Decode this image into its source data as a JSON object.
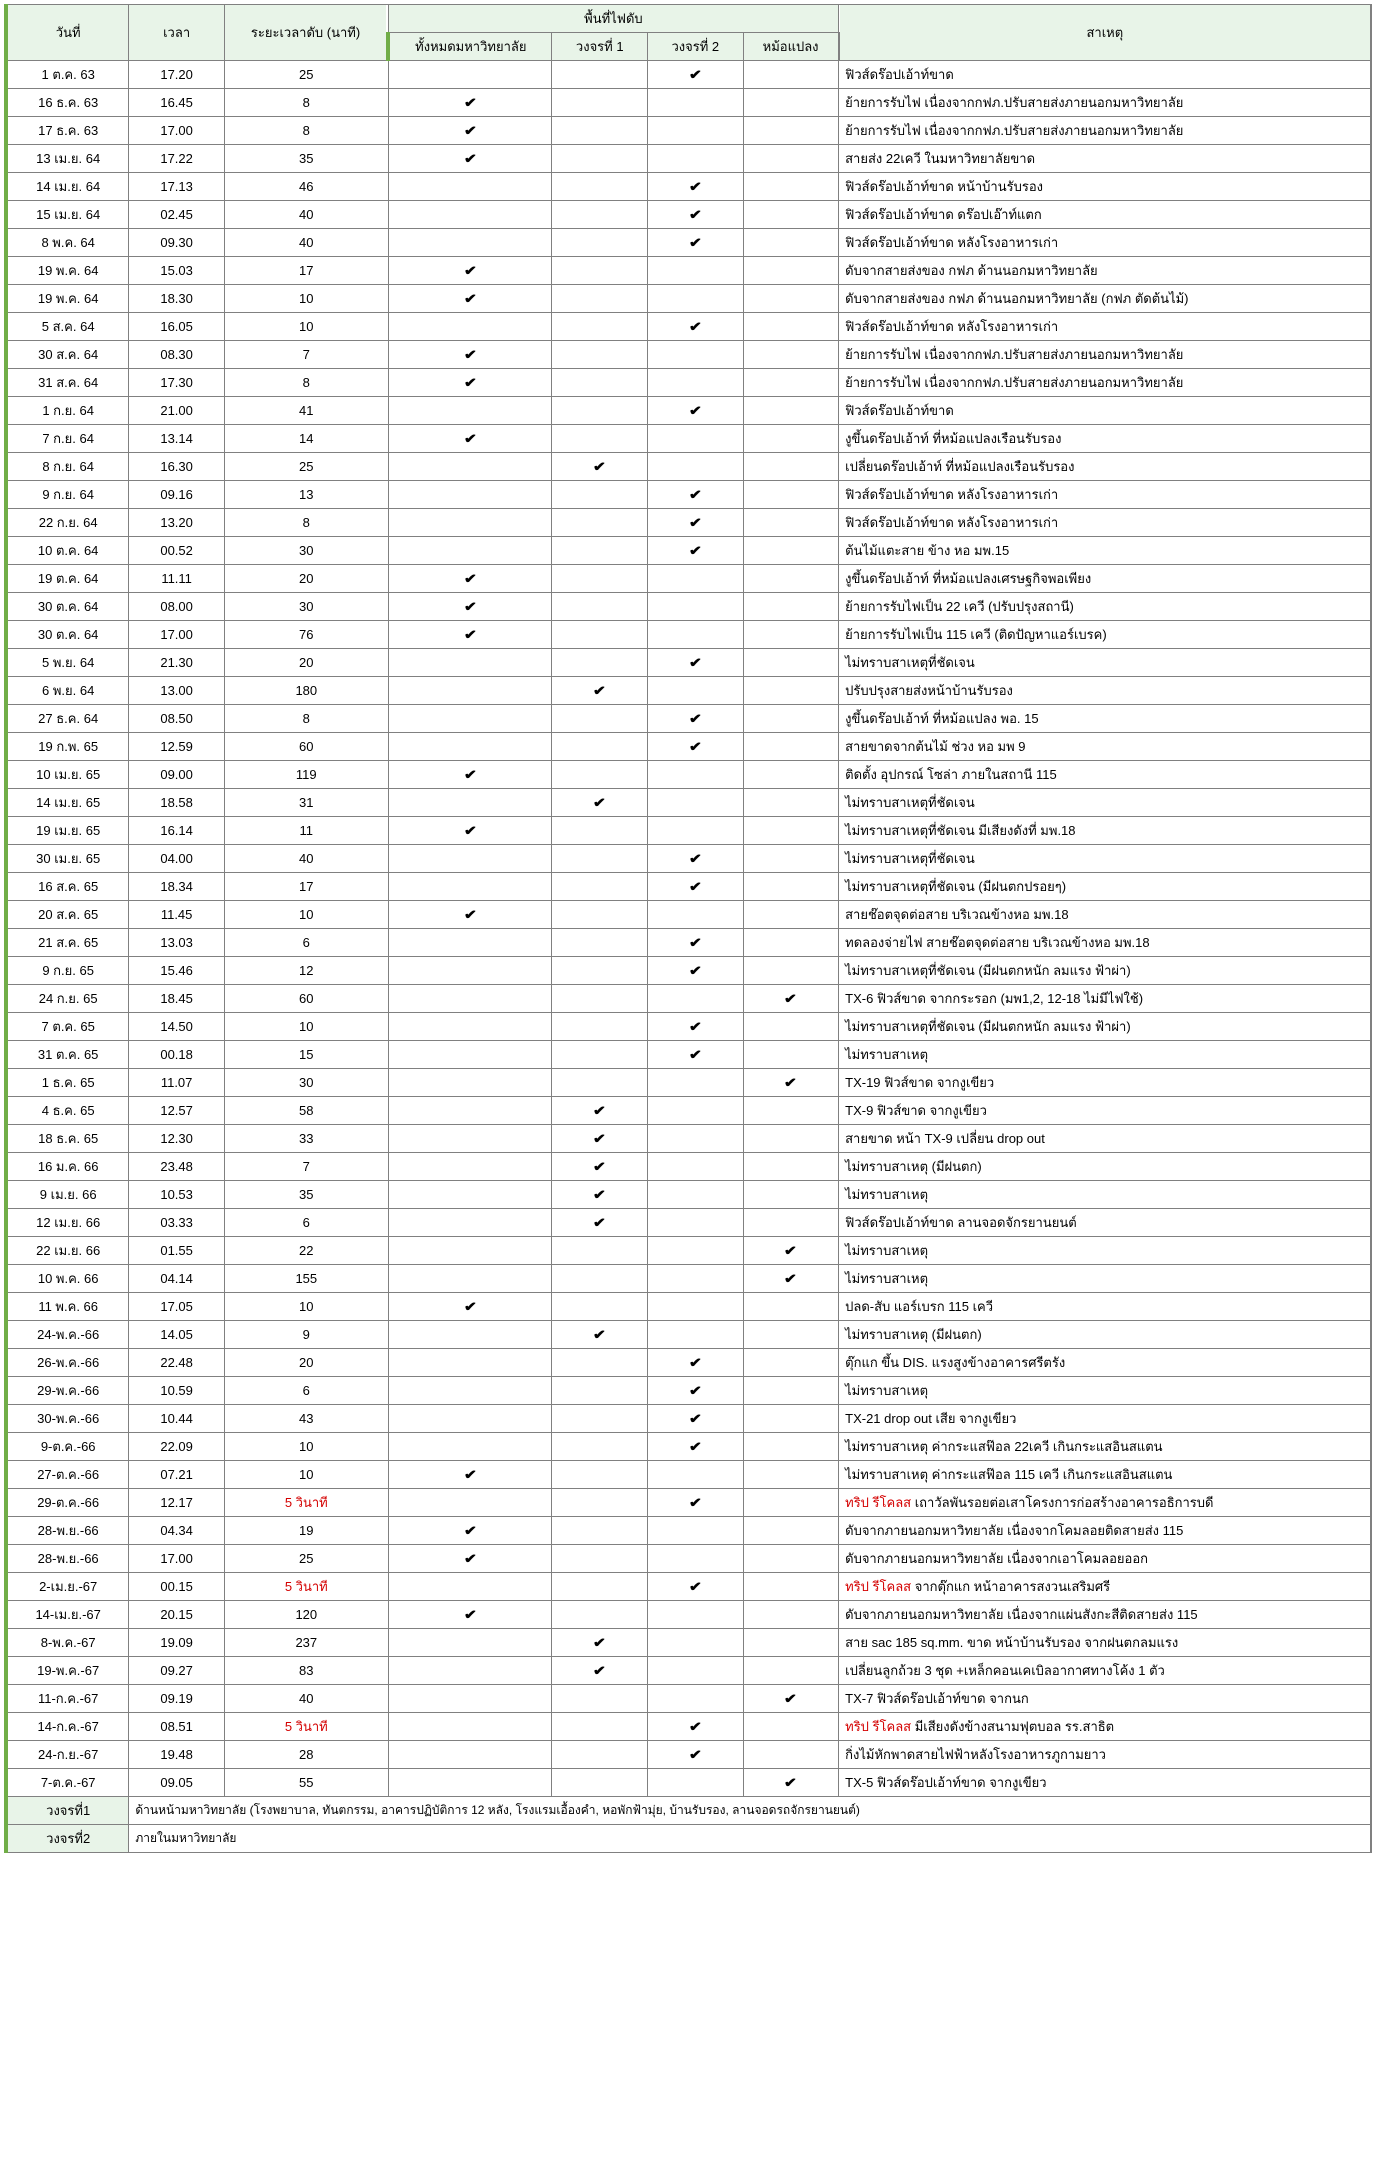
{
  "headers": {
    "date": "วันที่",
    "time": "เวลา",
    "duration": "ระยะเวลาดับ (นาที)",
    "area_group": "พื้นที่ไฟดับ",
    "area_all": "ทั้งหมดมหาวิทยาลัย",
    "area_c1": "วงจรที่ 1",
    "area_c2": "วงจรที่ 2",
    "area_tx": "หม้อแปลง",
    "reason": "สาเหตุ"
  },
  "footer": {
    "c1_label": "วงจรที่1",
    "c1_desc": "ด้านหน้ามหาวิทยาลัย (โรงพยาบาล, ทันตกรรม, อาคารปฏิบัติการ 12 หลัง, โรงแรมเอื้องคำ, หอพักฟ้ามุ่ย, บ้านรับรอง, ลานจอดรถจักรยานยนต์)",
    "c2_label": "วงจรที่2",
    "c2_desc": "ภายในมหาวิทยาลัย"
  },
  "check_glyph": "✔",
  "rows": [
    {
      "date": "1 ต.ค. 63",
      "time": "17.20",
      "dur": "25",
      "a": [
        0,
        0,
        1,
        0
      ],
      "reason": "ฟิวส์ดร๊อปเอ้าท์ขาด"
    },
    {
      "date": "16 ธ.ค. 63",
      "time": "16.45",
      "dur": "8",
      "a": [
        1,
        0,
        0,
        0
      ],
      "reason": "ย้ายการรับไฟ เนื่องจากกฟภ.ปรับสายส่งภายนอกมหาวิทยาลัย"
    },
    {
      "date": "17 ธ.ค. 63",
      "time": "17.00",
      "dur": "8",
      "a": [
        1,
        0,
        0,
        0
      ],
      "reason": "ย้ายการรับไฟ เนื่องจากกฟภ.ปรับสายส่งภายนอกมหาวิทยาลัย"
    },
    {
      "date": "13 เม.ย. 64",
      "time": "17.22",
      "dur": "35",
      "a": [
        1,
        0,
        0,
        0
      ],
      "reason": "สายส่ง 22เควี ในมหาวิทยาลัยขาด"
    },
    {
      "date": "14 เม.ย. 64",
      "time": "17.13",
      "dur": "46",
      "a": [
        0,
        0,
        1,
        0
      ],
      "reason": "ฟิวส์ดร๊อปเอ้าท์ขาด หน้าบ้านรับรอง"
    },
    {
      "date": "15 เม.ย. 64",
      "time": "02.45",
      "dur": "40",
      "a": [
        0,
        0,
        1,
        0
      ],
      "reason": "ฟิวส์ดร๊อปเอ้าท์ขาด ดร๊อปเอ๊าท์แตก"
    },
    {
      "date": "8 พ.ค. 64",
      "time": "09.30",
      "dur": "40",
      "a": [
        0,
        0,
        1,
        0
      ],
      "reason": "ฟิวส์ดร๊อปเอ้าท์ขาด หลังโรงอาหารเก่า"
    },
    {
      "date": "19 พ.ค. 64",
      "time": "15.03",
      "dur": "17",
      "a": [
        1,
        0,
        0,
        0
      ],
      "reason": "ดับจากสายส่งของ กฟภ ด้านนอกมหาวิทยาลัย"
    },
    {
      "date": "19 พ.ค. 64",
      "time": "18.30",
      "dur": "10",
      "a": [
        1,
        0,
        0,
        0
      ],
      "reason": "ดับจากสายส่งของ กฟภ ด้านนอกมหาวิทยาลัย (กฟภ ตัดต้นไม้)"
    },
    {
      "date": "5 ส.ค. 64",
      "time": "16.05",
      "dur": "10",
      "a": [
        0,
        0,
        1,
        0
      ],
      "reason": "ฟิวส์ดร๊อปเอ้าท์ขาด หลังโรงอาหารเก่า"
    },
    {
      "date": "30 ส.ค. 64",
      "time": "08.30",
      "dur": "7",
      "a": [
        1,
        0,
        0,
        0
      ],
      "reason": "ย้ายการรับไฟ เนื่องจากกฟภ.ปรับสายส่งภายนอกมหาวิทยาลัย"
    },
    {
      "date": "31 ส.ค. 64",
      "time": "17.30",
      "dur": "8",
      "a": [
        1,
        0,
        0,
        0
      ],
      "reason": "ย้ายการรับไฟ เนื่องจากกฟภ.ปรับสายส่งภายนอกมหาวิทยาลัย"
    },
    {
      "date": "1 ก.ย. 64",
      "time": "21.00",
      "dur": "41",
      "a": [
        0,
        0,
        1,
        0
      ],
      "reason": "ฟิวส์ดร๊อปเอ้าท์ขาด"
    },
    {
      "date": "7 ก.ย. 64",
      "time": "13.14",
      "dur": "14",
      "a": [
        1,
        0,
        0,
        0
      ],
      "reason": "งูขึ้นดร๊อปเอ้าท์ ที่หม้อแปลงเรือนรับรอง"
    },
    {
      "date": "8 ก.ย. 64",
      "time": "16.30",
      "dur": "25",
      "a": [
        0,
        1,
        0,
        0
      ],
      "reason": "เปลี่ยนดร๊อปเอ้าท์ ที่หม้อแปลงเรือนรับรอง"
    },
    {
      "date": "9 ก.ย. 64",
      "time": "09.16",
      "dur": "13",
      "a": [
        0,
        0,
        1,
        0
      ],
      "reason": "ฟิวส์ดร๊อปเอ้าท์ขาด หลังโรงอาหารเก่า"
    },
    {
      "date": "22 ก.ย. 64",
      "time": "13.20",
      "dur": "8",
      "a": [
        0,
        0,
        1,
        0
      ],
      "reason": "ฟิวส์ดร๊อปเอ้าท์ขาด หลังโรงอาหารเก่า"
    },
    {
      "date": "10 ต.ค. 64",
      "time": "00.52",
      "dur": "30",
      "a": [
        0,
        0,
        1,
        0
      ],
      "reason": "ต้นไม้แตะสาย ข้าง หอ มพ.15"
    },
    {
      "date": "19 ต.ค. 64",
      "time": "11.11",
      "dur": "20",
      "a": [
        1,
        0,
        0,
        0
      ],
      "reason": "งูขึ้นดร๊อปเอ้าท์ ที่หม้อแปลงเศรษฐกิจพอเพียง"
    },
    {
      "date": "30 ต.ค. 64",
      "time": "08.00",
      "dur": "30",
      "a": [
        1,
        0,
        0,
        0
      ],
      "reason": "ย้ายการรับไฟเป็น 22 เควี (ปรับปรุงสถานี)"
    },
    {
      "date": "30 ต.ค. 64",
      "time": "17.00",
      "dur": "76",
      "a": [
        1,
        0,
        0,
        0
      ],
      "reason": "ย้ายการรับไฟเป็น 115 เควี (ติดปัญหาแอร์เบรค)"
    },
    {
      "date": "5 พ.ย. 64",
      "time": "21.30",
      "dur": "20",
      "a": [
        0,
        0,
        1,
        0
      ],
      "reason": "ไม่ทราบสาเหตุที่ชัดเจน"
    },
    {
      "date": "6 พ.ย. 64",
      "time": "13.00",
      "dur": "180",
      "a": [
        0,
        1,
        0,
        0
      ],
      "reason": "ปรับปรุงสายส่งหน้าบ้านรับรอง"
    },
    {
      "date": "27 ธ.ค. 64",
      "time": "08.50",
      "dur": "8",
      "a": [
        0,
        0,
        1,
        0
      ],
      "reason": "งูขึ้นดร๊อปเอ้าท์ ที่หม้อแปลง พอ. 15"
    },
    {
      "date": "19 ก.พ. 65",
      "time": "12.59",
      "dur": "60",
      "a": [
        0,
        0,
        1,
        0
      ],
      "reason": "สายขาดจากต้นไม้ ช่วง หอ มพ 9"
    },
    {
      "date": "10 เม.ย. 65",
      "time": "09.00",
      "dur": "119",
      "a": [
        1,
        0,
        0,
        0
      ],
      "reason": "ติดตั้ง อุปกรณ์ โซล่า ภายในสถานี 115"
    },
    {
      "date": "14 เม.ย. 65",
      "time": "18.58",
      "dur": "31",
      "a": [
        0,
        1,
        0,
        0
      ],
      "reason": "ไม่ทราบสาเหตุที่ชัดเจน"
    },
    {
      "date": "19 เม.ย. 65",
      "time": "16.14",
      "dur": "11",
      "a": [
        1,
        0,
        0,
        0
      ],
      "reason": "ไม่ทราบสาเหตุที่ชัดเจน มีเสียงดังที่ มพ.18"
    },
    {
      "date": "30 เม.ย. 65",
      "time": "04.00",
      "dur": "40",
      "a": [
        0,
        0,
        1,
        0
      ],
      "reason": "ไม่ทราบสาเหตุที่ชัดเจน"
    },
    {
      "date": "16 ส.ค. 65",
      "time": "18.34",
      "dur": "17",
      "a": [
        0,
        0,
        1,
        0
      ],
      "reason": "ไม่ทราบสาเหตุที่ชัดเจน (มีฝนตกปรอยๆ)"
    },
    {
      "date": "20 ส.ค. 65",
      "time": "11.45",
      "dur": "10",
      "a": [
        1,
        0,
        0,
        0
      ],
      "reason": "สายช๊อตจุดต่อสาย บริเวณข้างหอ มพ.18"
    },
    {
      "date": "21 ส.ค. 65",
      "time": "13.03",
      "dur": "6",
      "a": [
        0,
        0,
        1,
        0
      ],
      "reason": "ทดลองจ่ายไฟ สายช๊อตจุดต่อสาย บริเวณข้างหอ มพ.18"
    },
    {
      "date": "9 ก.ย. 65",
      "time": "15.46",
      "dur": "12",
      "a": [
        0,
        0,
        1,
        0
      ],
      "reason": "ไม่ทราบสาเหตุที่ชัดเจน (มีฝนตกหนัก ลมแรง ฟ้าผ่า)"
    },
    {
      "date": "24 ก.ย. 65",
      "time": "18.45",
      "dur": "60",
      "a": [
        0,
        0,
        0,
        1
      ],
      "reason": "TX-6 ฟิวส์ขาด จากกระรอก (มพ1,2, 12-18 ไม่มีไฟใช้)"
    },
    {
      "date": "7 ต.ค. 65",
      "time": "14.50",
      "dur": "10",
      "a": [
        0,
        0,
        1,
        0
      ],
      "reason": "ไม่ทราบสาเหตุที่ชัดเจน (มีฝนตกหนัก ลมแรง ฟ้าผ่า)"
    },
    {
      "date": "31 ต.ค. 65",
      "time": "00.18",
      "dur": "15",
      "a": [
        0,
        0,
        1,
        0
      ],
      "reason": "ไม่ทราบสาเหตุ"
    },
    {
      "date": "1 ธ.ค. 65",
      "time": "11.07",
      "dur": "30",
      "a": [
        0,
        0,
        0,
        1
      ],
      "reason": "TX-19 ฟิวส์ขาด จากงูเขียว"
    },
    {
      "date": "4 ธ.ค. 65",
      "time": "12.57",
      "dur": "58",
      "a": [
        0,
        1,
        0,
        0
      ],
      "reason": "TX-9 ฟิวส์ขาด จากงูเขียว"
    },
    {
      "date": "18 ธ.ค. 65",
      "time": "12.30",
      "dur": "33",
      "a": [
        0,
        1,
        0,
        0
      ],
      "reason": "สายขาด หน้า TX-9 เปลี่ยน drop out"
    },
    {
      "date": "16 ม.ค. 66",
      "time": "23.48",
      "dur": "7",
      "a": [
        0,
        1,
        0,
        0
      ],
      "reason": "ไม่ทราบสาเหตุ (มีฝนตก)"
    },
    {
      "date": "9 เม.ย. 66",
      "time": "10.53",
      "dur": "35",
      "a": [
        0,
        1,
        0,
        0
      ],
      "reason": "ไม่ทราบสาเหตุ"
    },
    {
      "date": "12 เม.ย. 66",
      "time": "03.33",
      "dur": "6",
      "a": [
        0,
        1,
        0,
        0
      ],
      "reason": "ฟิวส์ดร๊อปเอ้าท์ขาด ลานจอดจักรยานยนต์"
    },
    {
      "date": "22 เม.ย. 66",
      "time": "01.55",
      "dur": "22",
      "a": [
        0,
        0,
        0,
        1
      ],
      "reason": "ไม่ทราบสาเหตุ"
    },
    {
      "date": "10 พ.ค. 66",
      "time": "04.14",
      "dur": "155",
      "a": [
        0,
        0,
        0,
        1
      ],
      "reason": "ไม่ทราบสาเหตุ"
    },
    {
      "date": "11 พ.ค. 66",
      "time": "17.05",
      "dur": "10",
      "a": [
        1,
        0,
        0,
        0
      ],
      "reason": "ปลด-สับ แอร์เบรก 115 เควี"
    },
    {
      "date": "24-พ.ค.-66",
      "time": "14.05",
      "dur": "9",
      "a": [
        0,
        1,
        0,
        0
      ],
      "reason": "ไม่ทราบสาเหตุ (มีฝนตก)"
    },
    {
      "date": "26-พ.ค.-66",
      "time": "22.48",
      "dur": "20",
      "a": [
        0,
        0,
        1,
        0
      ],
      "reason": "ตุ๊กแก ขึ้น DIS. แรงสูงข้างอาคารศรีตรัง"
    },
    {
      "date": "29-พ.ค.-66",
      "time": "10.59",
      "dur": "6",
      "a": [
        0,
        0,
        1,
        0
      ],
      "reason": "ไม่ทราบสาเหตุ"
    },
    {
      "date": "30-พ.ค.-66",
      "time": "10.44",
      "dur": "43",
      "a": [
        0,
        0,
        1,
        0
      ],
      "reason": "TX-21 drop out เสีย จากงูเขียว"
    },
    {
      "date": "9-ต.ค.-66",
      "time": "22.09",
      "dur": "10",
      "a": [
        0,
        0,
        1,
        0
      ],
      "reason": "ไม่ทราบสาเหตุ ค่ากระแสฟ๊อล 22เควี เกินกระแสอินสแตน"
    },
    {
      "date": "27-ต.ค.-66",
      "time": "07.21",
      "dur": "10",
      "a": [
        1,
        0,
        0,
        0
      ],
      "reason": "ไม่ทราบสาเหตุ ค่ากระแสฟ๊อล 115 เควี เกินกระแสอินสแตน"
    },
    {
      "date": "29-ต.ค.-66",
      "time": "12.17",
      "dur": "5 วินาที",
      "dur_red": true,
      "a": [
        0,
        0,
        1,
        0
      ],
      "reason": "ทริป รีโคลส เถาวัลพันรอยต่อเสาโครงการก่อสร้างอาคารอธิการบดี",
      "reason_red": true
    },
    {
      "date": "28-พ.ย.-66",
      "time": "04.34",
      "dur": "19",
      "a": [
        1,
        0,
        0,
        0
      ],
      "reason": "ดับจากภายนอกมหาวิทยาลัย เนื่องจากโคมลอยติดสายส่ง 115"
    },
    {
      "date": "28-พ.ย.-66",
      "time": "17.00",
      "dur": "25",
      "a": [
        1,
        0,
        0,
        0
      ],
      "reason": "ดับจากภายนอกมหาวิทยาลัย เนื่องจากเอาโคมลอยออก"
    },
    {
      "date": "2-เม.ย.-67",
      "time": "00.15",
      "dur": "5 วินาที",
      "dur_red": true,
      "a": [
        0,
        0,
        1,
        0
      ],
      "reason": "ทริป รีโคลส จากตุ๊กแก หน้าอาคารสงวนเสริมศรี",
      "reason_red": true
    },
    {
      "date": "14-เม.ย.-67",
      "time": "20.15",
      "dur": "120",
      "a": [
        1,
        0,
        0,
        0
      ],
      "reason": "ดับจากภายนอกมหาวิทยาลัย เนื่องจากแผ่นสังกะสีติดสายส่ง 115"
    },
    {
      "date": "8-พ.ค.-67",
      "time": "19.09",
      "dur": "237",
      "a": [
        0,
        1,
        0,
        0
      ],
      "reason": "สาย sac 185 sq.mm. ขาด หน้าบ้านรับรอง จากฝนตกลมแรง"
    },
    {
      "date": "19-พ.ค.-67",
      "time": "09.27",
      "dur": "83",
      "a": [
        0,
        1,
        0,
        0
      ],
      "reason": "เปลี่ยนลูกถ้วย 3 ชุด +เหล็กคอนเคเบิลอากาศทางโค้ง 1 ตัว"
    },
    {
      "date": "11-ก.ค.-67",
      "time": "09.19",
      "dur": "40",
      "a": [
        0,
        0,
        0,
        1
      ],
      "reason": "TX-7  ฟิวส์ดร๊อปเอ้าท์ขาด จากนก"
    },
    {
      "date": "14-ก.ค.-67",
      "time": "08.51",
      "dur": "5 วินาที",
      "dur_red": true,
      "a": [
        0,
        0,
        1,
        0
      ],
      "reason": "ทริป รีโคลส มีเสียงดังข้างสนามฟุตบอล รร.สาธิต",
      "reason_red": true
    },
    {
      "date": "24-ก.ย.-67",
      "time": "19.48",
      "dur": "28",
      "a": [
        0,
        0,
        1,
        0
      ],
      "reason": "กิ่งไม้หักพาดสายไฟฟ้าหลังโรงอาหารภูกามยาว"
    },
    {
      "date": "7-ต.ค.-67",
      "time": "09.05",
      "dur": "55",
      "a": [
        0,
        0,
        0,
        1
      ],
      "reason": "TX-5  ฟิวส์ดร๊อปเอ้าท์ขาด จากงูเขียว"
    }
  ]
}
